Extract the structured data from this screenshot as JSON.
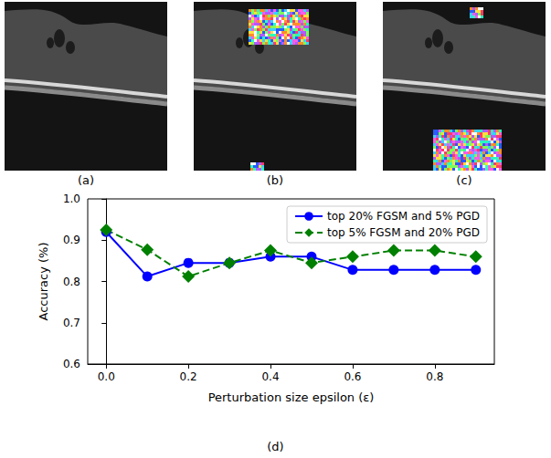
{
  "chart_data": {
    "type": "line",
    "caption": "(d)",
    "x_label": "Perturbation size epsilon (ε)",
    "y_label": "Accuracy (%)",
    "x": [
      0,
      0.1,
      0.2,
      0.3,
      0.4,
      0.5,
      0.6,
      0.7,
      0.8,
      0.9
    ],
    "xlim": [
      -0.045,
      0.945
    ],
    "xticks": [
      {
        "value": 0,
        "label": "0.0"
      },
      0.2,
      0.4,
      0.6,
      0.8
    ],
    "ylim": [
      0.6,
      1
    ],
    "yticks": [
      0.6,
      0.7,
      0.8,
      0.9,
      {
        "value": 1,
        "label": "1.0"
      }
    ],
    "grid": false,
    "legend": "upper right",
    "series": [
      {
        "name": "top 20% FGSM and 5% PGD",
        "color": "#0000ff",
        "marker": "circle",
        "line_style": "solid",
        "values": [
          0.92,
          0.812,
          0.845,
          0.845,
          0.86,
          0.86,
          0.828,
          0.828,
          0.828,
          0.828
        ]
      },
      {
        "name": "top 5% FGSM and 20% PGD",
        "color": "#008000",
        "marker": "diamond",
        "line_style": "dashed",
        "values": [
          0.925,
          0.877,
          0.812,
          0.845,
          0.875,
          0.845,
          0.86,
          0.875,
          0.875,
          0.86
        ]
      }
    ]
  },
  "images": [
    {
      "label": "(a)"
    },
    {
      "label": "(b)"
    },
    {
      "label": "(c)"
    }
  ]
}
